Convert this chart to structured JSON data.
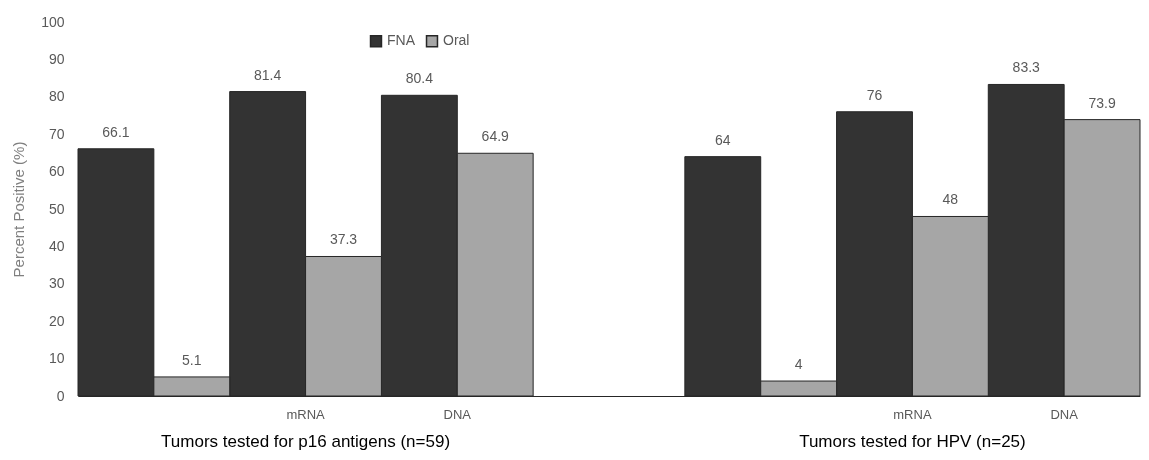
{
  "chart_data": {
    "type": "bar",
    "ylabel": "Percent Positive (%)",
    "categories": [
      null,
      "mRNA",
      "DNA",
      null,
      null,
      "mRNA",
      "DNA"
    ],
    "series": [
      {
        "name": "FNA",
        "color": "#333333",
        "values": [
          66.1,
          81.4,
          80.4,
          null,
          64,
          76,
          83.3
        ]
      },
      {
        "name": "Oral",
        "color": "#a6a6a6",
        "values": [
          5.1,
          37.3,
          64.9,
          null,
          4,
          48,
          73.9
        ]
      }
    ],
    "ylim": [
      0,
      100
    ],
    "yticks": [
      0,
      10,
      20,
      30,
      40,
      50,
      60,
      70,
      80,
      90,
      100
    ],
    "data_labels": true,
    "legend": "top",
    "grid": false,
    "annotations": [
      "Tumors tested for p16 antigens (n=59)",
      "Tumors tested for HPV (n=25)"
    ]
  }
}
